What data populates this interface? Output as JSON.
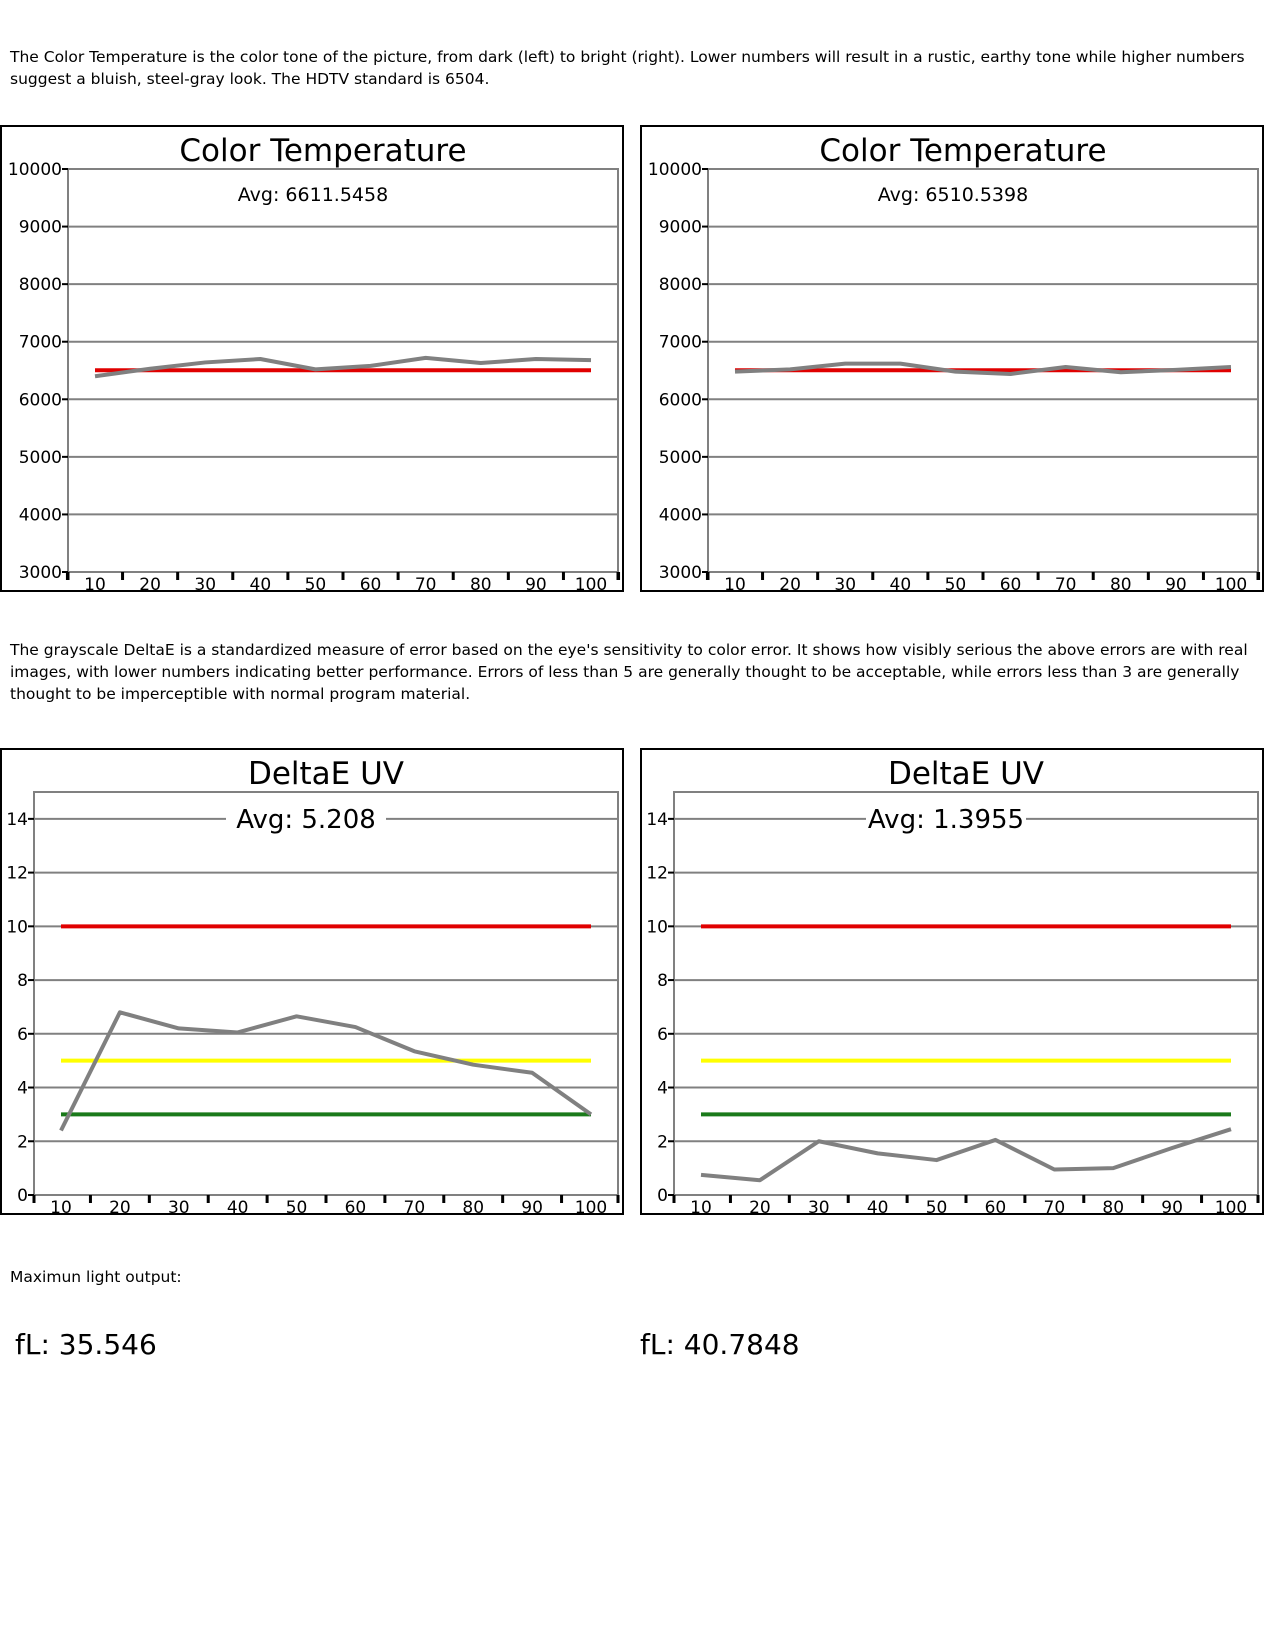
{
  "intro_text": "The Color Temperature is the color tone of the picture, from dark (left) to bright (right). Lower numbers will result in a rustic, earthy tone while higher numbers suggest a bluish, steel-gray look. The HDTV standard is 6504.",
  "deltae_text": "The grayscale DeltaE is a standardized measure of error based on the eye's sensitivity to color error. It shows how visibly serious the above errors are with real images, with lower numbers indicating better performance. Errors of less than 5 are generally thought to be acceptable, while errors less than 3 are generally thought to be imperceptible with normal program material.",
  "max_light_label": "Maximun light output:",
  "fl_left": "fL: 35.546",
  "fl_right": "fL: 40.7848",
  "colors": {
    "measured": "#808080",
    "target": "#e00000",
    "acceptable": "#ffff00",
    "imperceptible": "#1a7a1a",
    "grid": "#808080"
  },
  "chart_data": [
    {
      "type": "line",
      "title": "Color Temperature",
      "annotation": "Avg: 6611.5458",
      "x": [
        10,
        20,
        30,
        40,
        50,
        60,
        70,
        80,
        90,
        100
      ],
      "xlim": [
        10,
        100
      ],
      "ylim": [
        3000,
        10000
      ],
      "yticks": [
        3000,
        4000,
        5000,
        6000,
        7000,
        8000,
        9000,
        10000
      ],
      "grid": true,
      "series": [
        {
          "role": "measured",
          "values": [
            6400,
            6530,
            6640,
            6700,
            6520,
            6580,
            6720,
            6630,
            6700,
            6680
          ]
        }
      ],
      "reference_lines": [
        {
          "role": "target",
          "value": 6504
        }
      ]
    },
    {
      "type": "line",
      "title": "Color Temperature",
      "annotation": "Avg: 6510.5398",
      "x": [
        10,
        20,
        30,
        40,
        50,
        60,
        70,
        80,
        90,
        100
      ],
      "xlim": [
        10,
        100
      ],
      "ylim": [
        3000,
        10000
      ],
      "yticks": [
        3000,
        4000,
        5000,
        6000,
        7000,
        8000,
        9000,
        10000
      ],
      "grid": true,
      "series": [
        {
          "role": "measured",
          "values": [
            6480,
            6520,
            6620,
            6620,
            6480,
            6440,
            6560,
            6470,
            6510,
            6560
          ]
        }
      ],
      "reference_lines": [
        {
          "role": "target",
          "value": 6504
        }
      ]
    },
    {
      "type": "line",
      "title": "DeltaE UV",
      "annotation": "Avg: 5.208",
      "x": [
        10,
        20,
        30,
        40,
        50,
        60,
        70,
        80,
        90,
        100
      ],
      "xlim": [
        10,
        100
      ],
      "ylim": [
        0,
        15
      ],
      "yticks": [
        0,
        2,
        4,
        6,
        8,
        10,
        12,
        14
      ],
      "grid": true,
      "series": [
        {
          "role": "measured",
          "values": [
            2.4,
            6.8,
            6.2,
            6.05,
            6.65,
            6.25,
            5.35,
            4.85,
            4.55,
            3.0
          ]
        }
      ],
      "reference_lines": [
        {
          "role": "target",
          "value": 10
        },
        {
          "role": "acceptable",
          "value": 5
        },
        {
          "role": "imperceptible",
          "value": 3
        }
      ]
    },
    {
      "type": "line",
      "title": "DeltaE UV",
      "annotation": "Avg: 1.3955",
      "x": [
        10,
        20,
        30,
        40,
        50,
        60,
        70,
        80,
        90,
        100
      ],
      "xlim": [
        10,
        100
      ],
      "ylim": [
        0,
        15
      ],
      "yticks": [
        0,
        2,
        4,
        6,
        8,
        10,
        12,
        14
      ],
      "grid": true,
      "series": [
        {
          "role": "measured",
          "values": [
            0.75,
            0.55,
            2.0,
            1.55,
            1.3,
            2.05,
            0.95,
            1.0,
            1.75,
            2.45
          ]
        }
      ],
      "reference_lines": [
        {
          "role": "target",
          "value": 10
        },
        {
          "role": "acceptable",
          "value": 5
        },
        {
          "role": "imperceptible",
          "value": 3
        }
      ]
    }
  ]
}
